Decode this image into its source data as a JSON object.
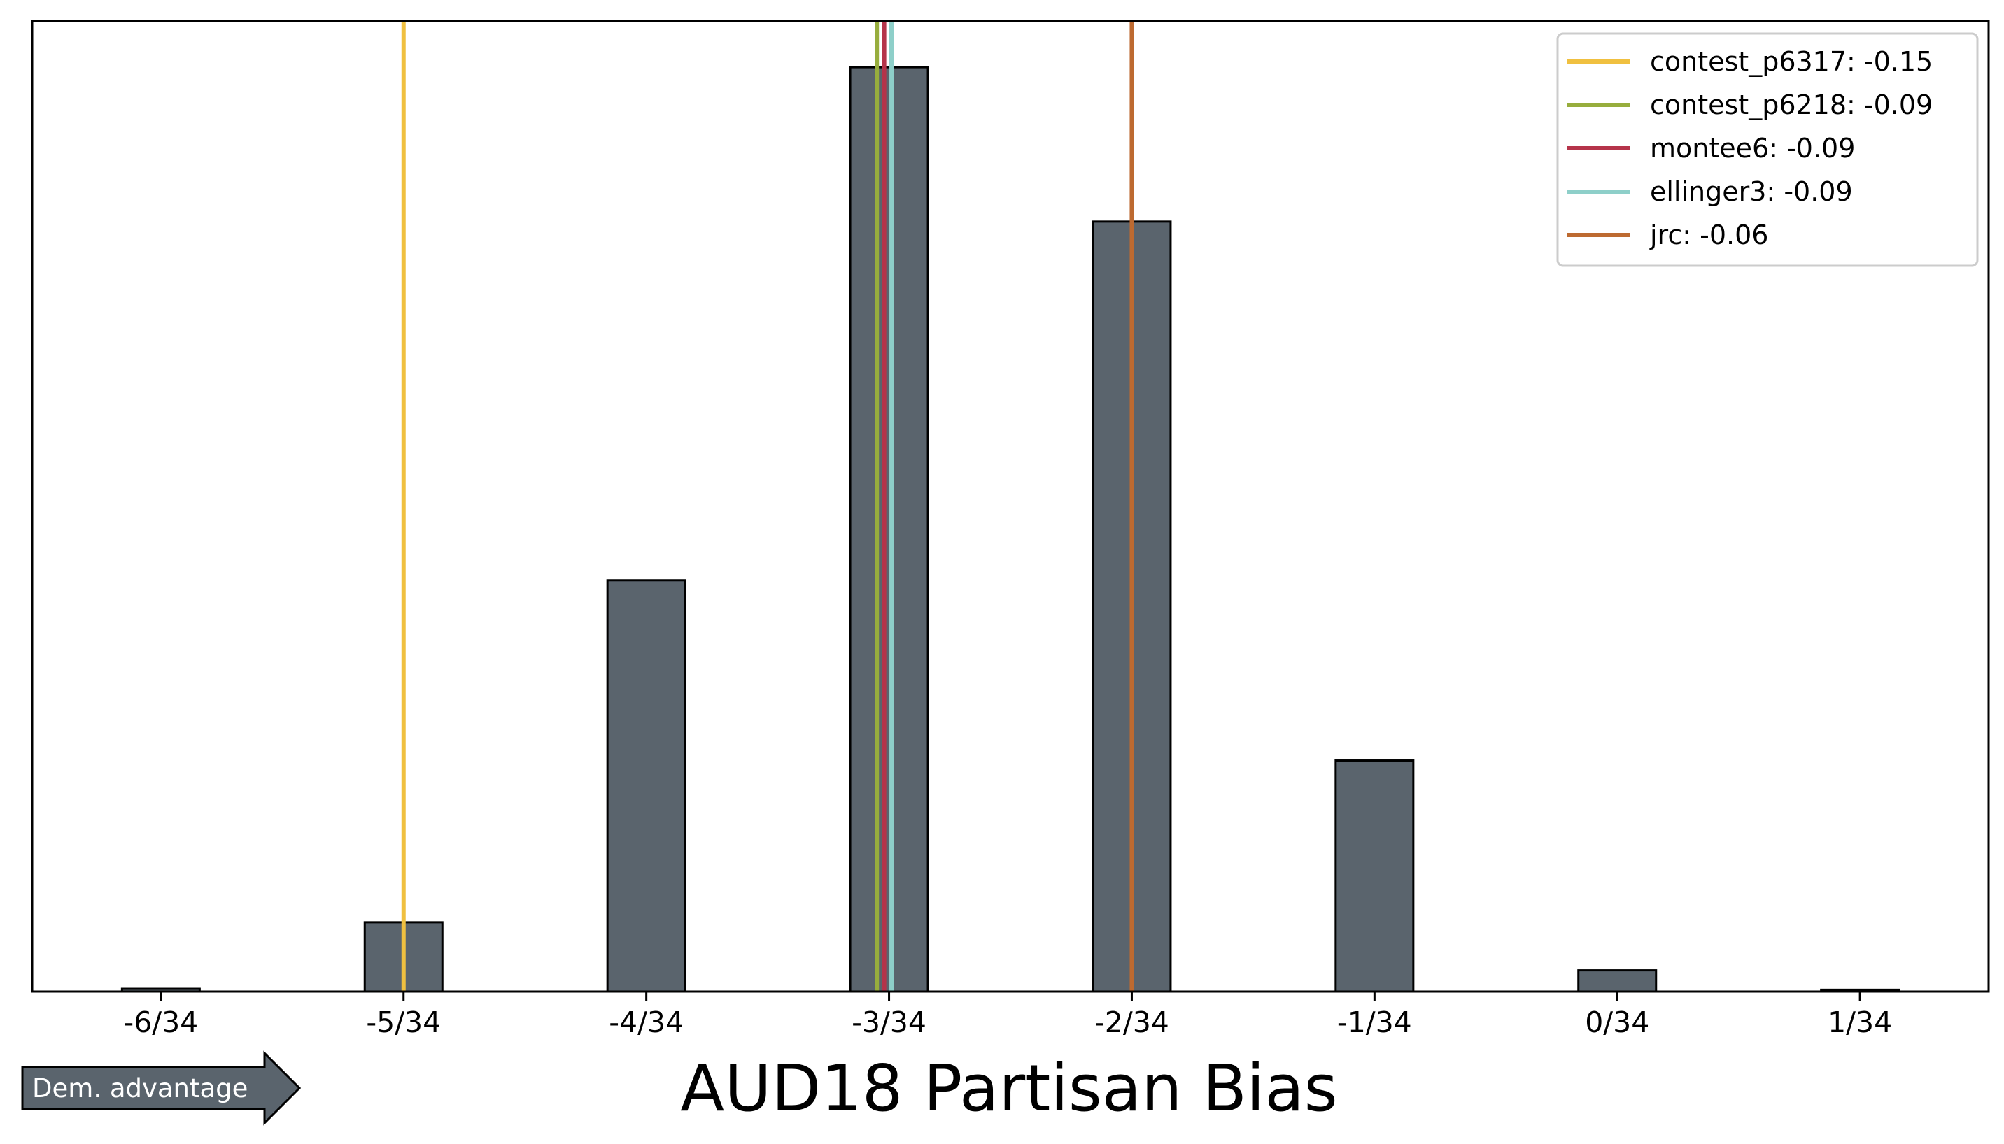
{
  "chart_data": {
    "type": "bar",
    "xlabel": "AUD18 Partisan Bias",
    "tick_labels": [
      "-6/34",
      "-5/34",
      "-4/34",
      "-3/34",
      "-2/34",
      "-1/34",
      "0/34",
      "1/34"
    ],
    "tick_values": [
      -6,
      -5,
      -4,
      -3,
      -2,
      -1,
      0,
      1
    ],
    "bars": [
      {
        "x": -6,
        "value": 0.003
      },
      {
        "x": -5,
        "value": 0.075
      },
      {
        "x": -4,
        "value": 0.445
      },
      {
        "x": -3,
        "value": 1.0
      },
      {
        "x": -2,
        "value": 0.833
      },
      {
        "x": -1,
        "value": 0.25
      },
      {
        "x": 0,
        "value": 0.023
      },
      {
        "x": 1,
        "value": 0.002
      }
    ],
    "xlim": [
      -6.53,
      1.53
    ],
    "ylim": [
      0,
      1.05
    ],
    "bar_color": "#5a646d",
    "reference_lines": [
      {
        "label": "contest_p6317: -0.15",
        "x": -5.0,
        "color": "#f0c040"
      },
      {
        "label": "contest_p6218: -0.09",
        "x": -3.05,
        "color": "#97ad3d"
      },
      {
        "label": "montee6: -0.09",
        "x": -3.02,
        "color": "#b5344a"
      },
      {
        "label": "ellinger3: -0.09",
        "x": -2.99,
        "color": "#8ecfc9"
      },
      {
        "label": "jrc: -0.06",
        "x": -2.0,
        "color": "#bd6a31"
      }
    ],
    "legend_position": "top-right",
    "annotation": "Dem. advantage"
  }
}
